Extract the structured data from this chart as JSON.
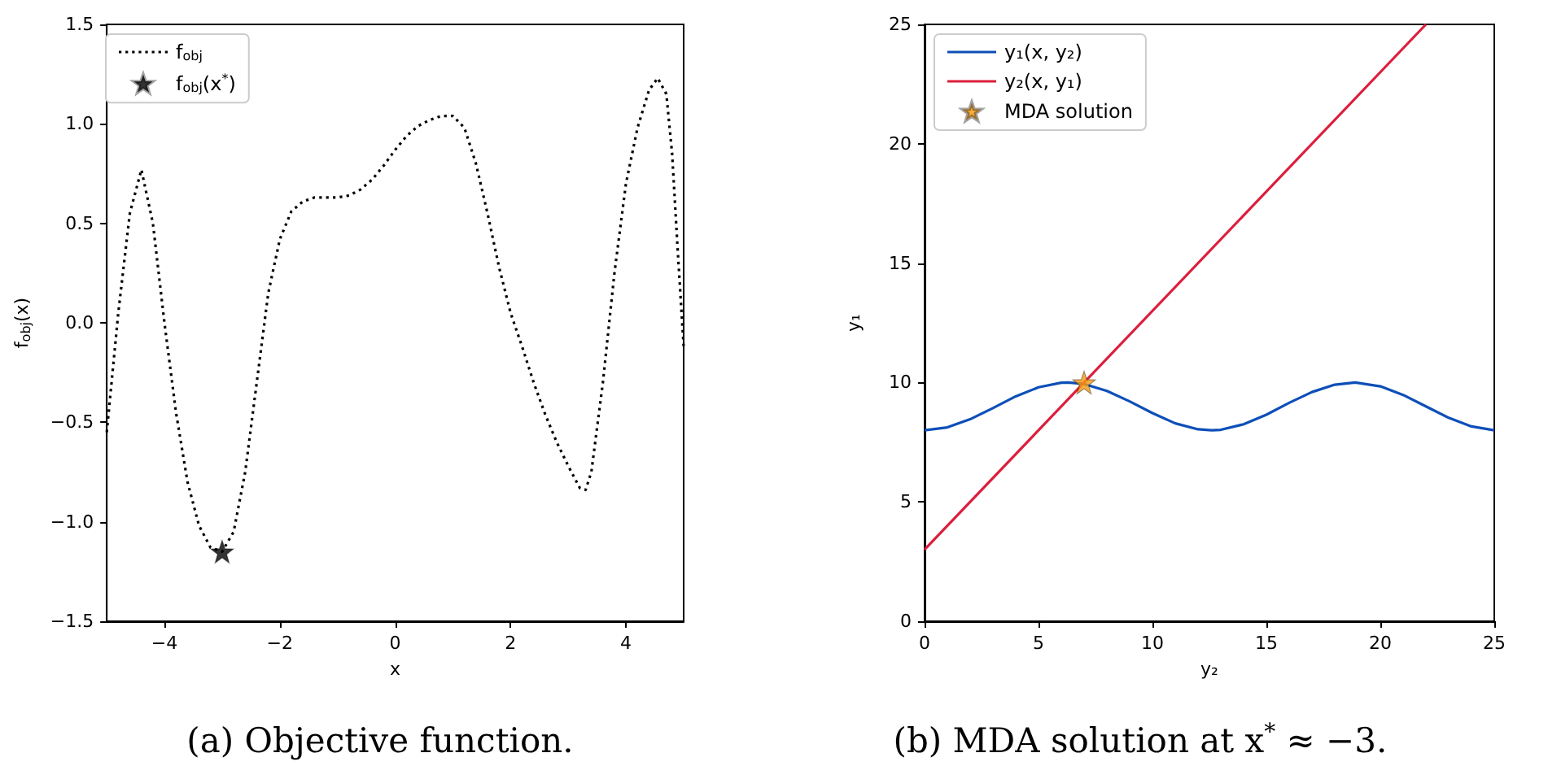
{
  "chart_data": [
    {
      "type": "line",
      "title": "(a) Objective function.",
      "xlabel": "x",
      "ylabel": "f$_{obj}$(x)",
      "xlim": [
        -5,
        5
      ],
      "xticks": [
        {
          "value": -4,
          "label": "−4"
        },
        {
          "value": -2,
          "label": "−2"
        },
        0,
        2,
        4
      ],
      "ylim": [
        -1.5,
        1.5
      ],
      "yticks": [
        {
          "value": -1.5,
          "label": "−1.5"
        },
        {
          "value": -1,
          "label": "−1.0"
        },
        {
          "value": -0.5,
          "label": "−0.5"
        },
        {
          "value": 0,
          "label": "0.0"
        },
        0.5,
        {
          "value": 1,
          "label": "1.0"
        },
        1.5
      ],
      "grid": false,
      "legend": "top left",
      "series": [
        {
          "name": "f$_{obj}$",
          "color": "#000000",
          "line_style": "dotted",
          "marker": "none",
          "x": [
            -5,
            -4.8,
            -4.6,
            -4.4,
            -4.2,
            -4,
            -3.8,
            -3.6,
            -3.4,
            -3.2,
            -3,
            -2.8,
            -2.6,
            -2.4,
            -2.2,
            -2,
            -1.8,
            -1.6,
            -1.4,
            -1.2,
            -1,
            -0.8,
            -0.6,
            -0.4,
            -0.2,
            0,
            0.2,
            0.4,
            0.6,
            0.8,
            1,
            1.2,
            1.4,
            1.6,
            1.8,
            2,
            2.2,
            2.4,
            2.6,
            2.8,
            3,
            3.2,
            3.3,
            3.4,
            3.6,
            3.8,
            4,
            4.2,
            4.4,
            4.55,
            4.7,
            4.8,
            4.9,
            5
          ],
          "values": [
            -0.55,
            0.05,
            0.55,
            0.77,
            0.5,
            0,
            -0.45,
            -0.8,
            -1.02,
            -1.13,
            -1.15,
            -1.05,
            -0.75,
            -0.3,
            0.15,
            0.42,
            0.56,
            0.61,
            0.63,
            0.63,
            0.63,
            0.64,
            0.67,
            0.72,
            0.79,
            0.87,
            0.94,
            0.99,
            1.02,
            1.04,
            1.04,
            0.98,
            0.8,
            0.55,
            0.28,
            0.05,
            -0.12,
            -0.3,
            -0.46,
            -0.6,
            -0.72,
            -0.83,
            -0.84,
            -0.75,
            -0.3,
            0.25,
            0.7,
            0.98,
            1.17,
            1.23,
            1.15,
            0.85,
            0.35,
            -0.12
          ]
        },
        {
          "name": "f$_{obj}$(x$^{*}$)",
          "type": "scatter",
          "marker": "star",
          "color": "#000000",
          "x": [
            -3
          ],
          "values": [
            -1.15
          ]
        }
      ]
    },
    {
      "type": "line",
      "title": "(b) MDA solution at x$^{*}$ ≈ −3.",
      "xlabel": "y₂",
      "ylabel": "y₁",
      "xlim": [
        0,
        25
      ],
      "xticks": [
        0,
        5,
        10,
        15,
        20,
        25
      ],
      "ylim": [
        0,
        25
      ],
      "yticks": [
        0,
        5,
        10,
        15,
        20,
        25
      ],
      "grid": false,
      "legend": "top left",
      "series": [
        {
          "name": "y₁(x, y₂)",
          "color": "#0d4fb8",
          "line_style": "solid",
          "marker": "none",
          "x": [
            0,
            1,
            2,
            3,
            4,
            5,
            6,
            6.3,
            7,
            8,
            9,
            10,
            11,
            12,
            12.6,
            13,
            14,
            15,
            16,
            17,
            18,
            18.9,
            20,
            21,
            22,
            23,
            24,
            25
          ],
          "values": [
            8,
            8.12,
            8.46,
            8.93,
            9.42,
            9.8,
            9.99,
            10,
            9.94,
            9.65,
            9.21,
            8.72,
            8.29,
            8.04,
            8,
            8.02,
            8.25,
            8.65,
            9.15,
            9.6,
            9.91,
            10,
            9.84,
            9.48,
            9,
            8.52,
            8.16,
            8
          ]
        },
        {
          "name": "y₂(x, y₁)",
          "color": "#dc1e3c",
          "line_style": "solid",
          "marker": "none",
          "x": [
            0,
            22
          ],
          "values": [
            3,
            25
          ]
        },
        {
          "name": "MDA solution",
          "type": "scatter",
          "marker": "star",
          "color": "#f59a12",
          "x": [
            7
          ],
          "values": [
            10
          ]
        }
      ]
    }
  ]
}
